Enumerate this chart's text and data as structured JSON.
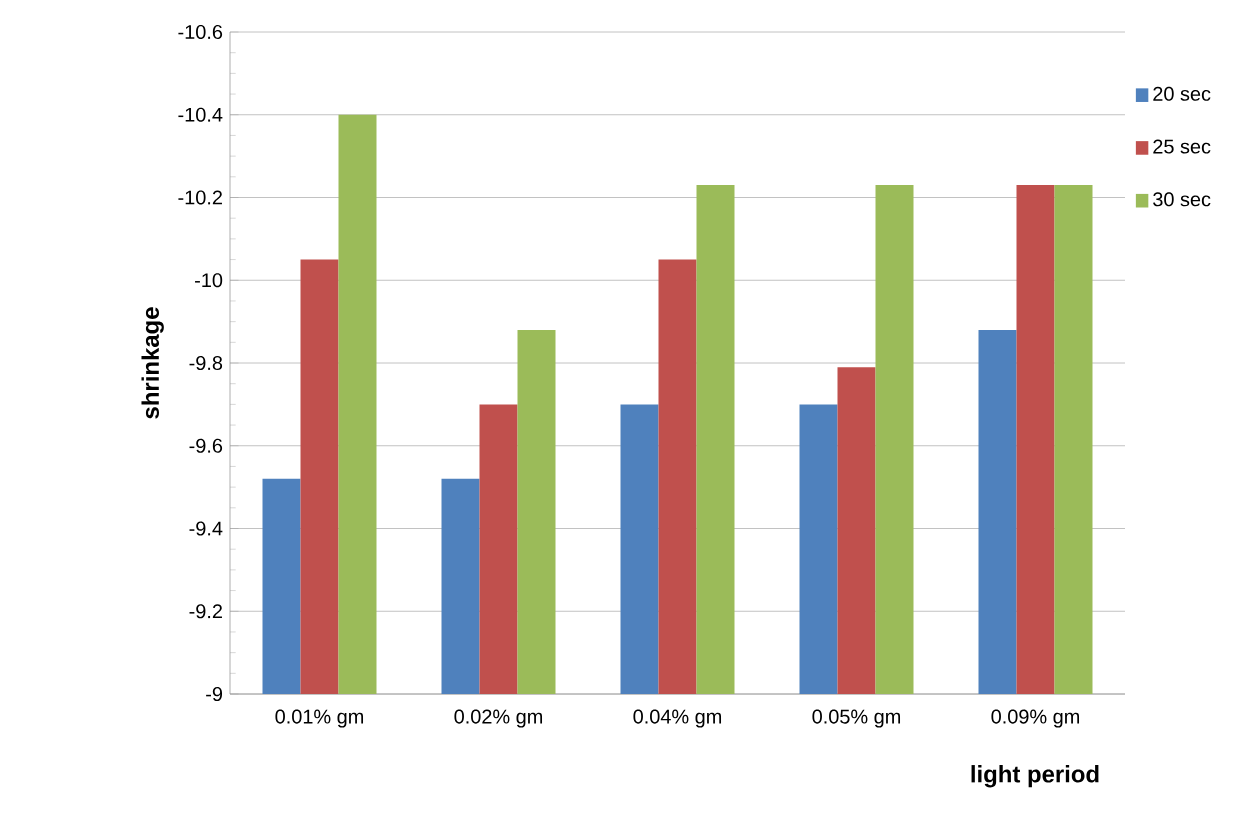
{
  "chart_data": {
    "type": "bar",
    "xlabel": "light period",
    "ylabel": "shrinkage",
    "categories": [
      "0.01% gm",
      "0.02% gm",
      "0.04% gm",
      "0.05% gm",
      "0.09% gm"
    ],
    "series": [
      {
        "name": "20 sec",
        "color": "#4f81bd",
        "values": [
          -9.52,
          -9.52,
          -9.7,
          -9.7,
          -9.88
        ]
      },
      {
        "name": "25 sec",
        "color": "#c0504d",
        "values": [
          -10.05,
          -9.7,
          -10.05,
          -9.79,
          -10.23
        ]
      },
      {
        "name": "30 sec",
        "color": "#9bbb59",
        "values": [
          -10.4,
          -9.88,
          -10.23,
          -10.23,
          -10.23
        ]
      }
    ],
    "ylim": [
      -9,
      -10.6
    ],
    "yticks": [
      -9,
      -9.2,
      -9.4,
      -9.6,
      -9.8,
      -10,
      -10.2,
      -10.4,
      -10.6
    ],
    "grid": "y",
    "legend": "right"
  }
}
